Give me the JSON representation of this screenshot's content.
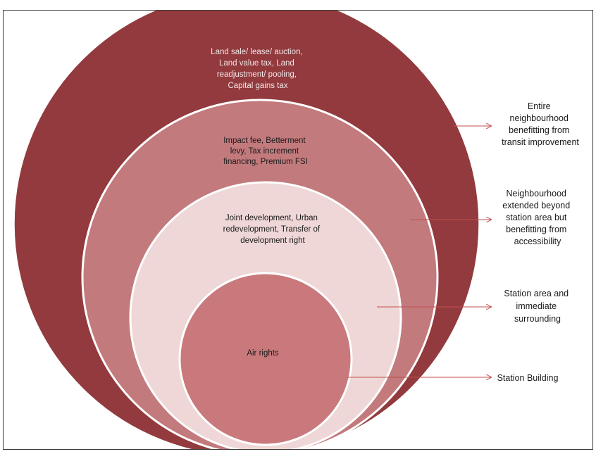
{
  "rings": [
    {
      "id": "outer",
      "fill": "#923a3e",
      "lines": [
        "Land sale/ lease/ auction,",
        "Land value tax, Land",
        "readjustment/ pooling,",
        "Capital gains tax"
      ]
    },
    {
      "id": "second",
      "fill": "#c27a7d",
      "lines": [
        "Impact fee, Betterment",
        "levy, Tax increment",
        "financing, Premium FSI"
      ]
    },
    {
      "id": "third",
      "fill": "#eed7d6",
      "lines": [
        "Joint development, Urban",
        "redevelopment, Transfer of",
        "development right"
      ]
    },
    {
      "id": "inner",
      "fill": "#c9797c",
      "lines": [
        "Air rights"
      ]
    }
  ],
  "side_labels": [
    {
      "id": "entire-neighbourhood",
      "lines": [
        "Entire",
        "neighbourhood",
        "benefitting from",
        "transit improvement"
      ]
    },
    {
      "id": "neighbourhood-extended",
      "lines": [
        "Neighbourhood",
        "extended beyond",
        "station area but",
        "benefitting from",
        "accessibility"
      ]
    },
    {
      "id": "station-area",
      "lines": [
        "Station area and",
        "immediate",
        "surrounding"
      ]
    },
    {
      "id": "station-building",
      "lines": [
        "Station Building"
      ]
    }
  ],
  "colors": {
    "arrow": "#c0504d",
    "ring_stroke": "#ffffff",
    "frame": "#3a3a3a"
  }
}
